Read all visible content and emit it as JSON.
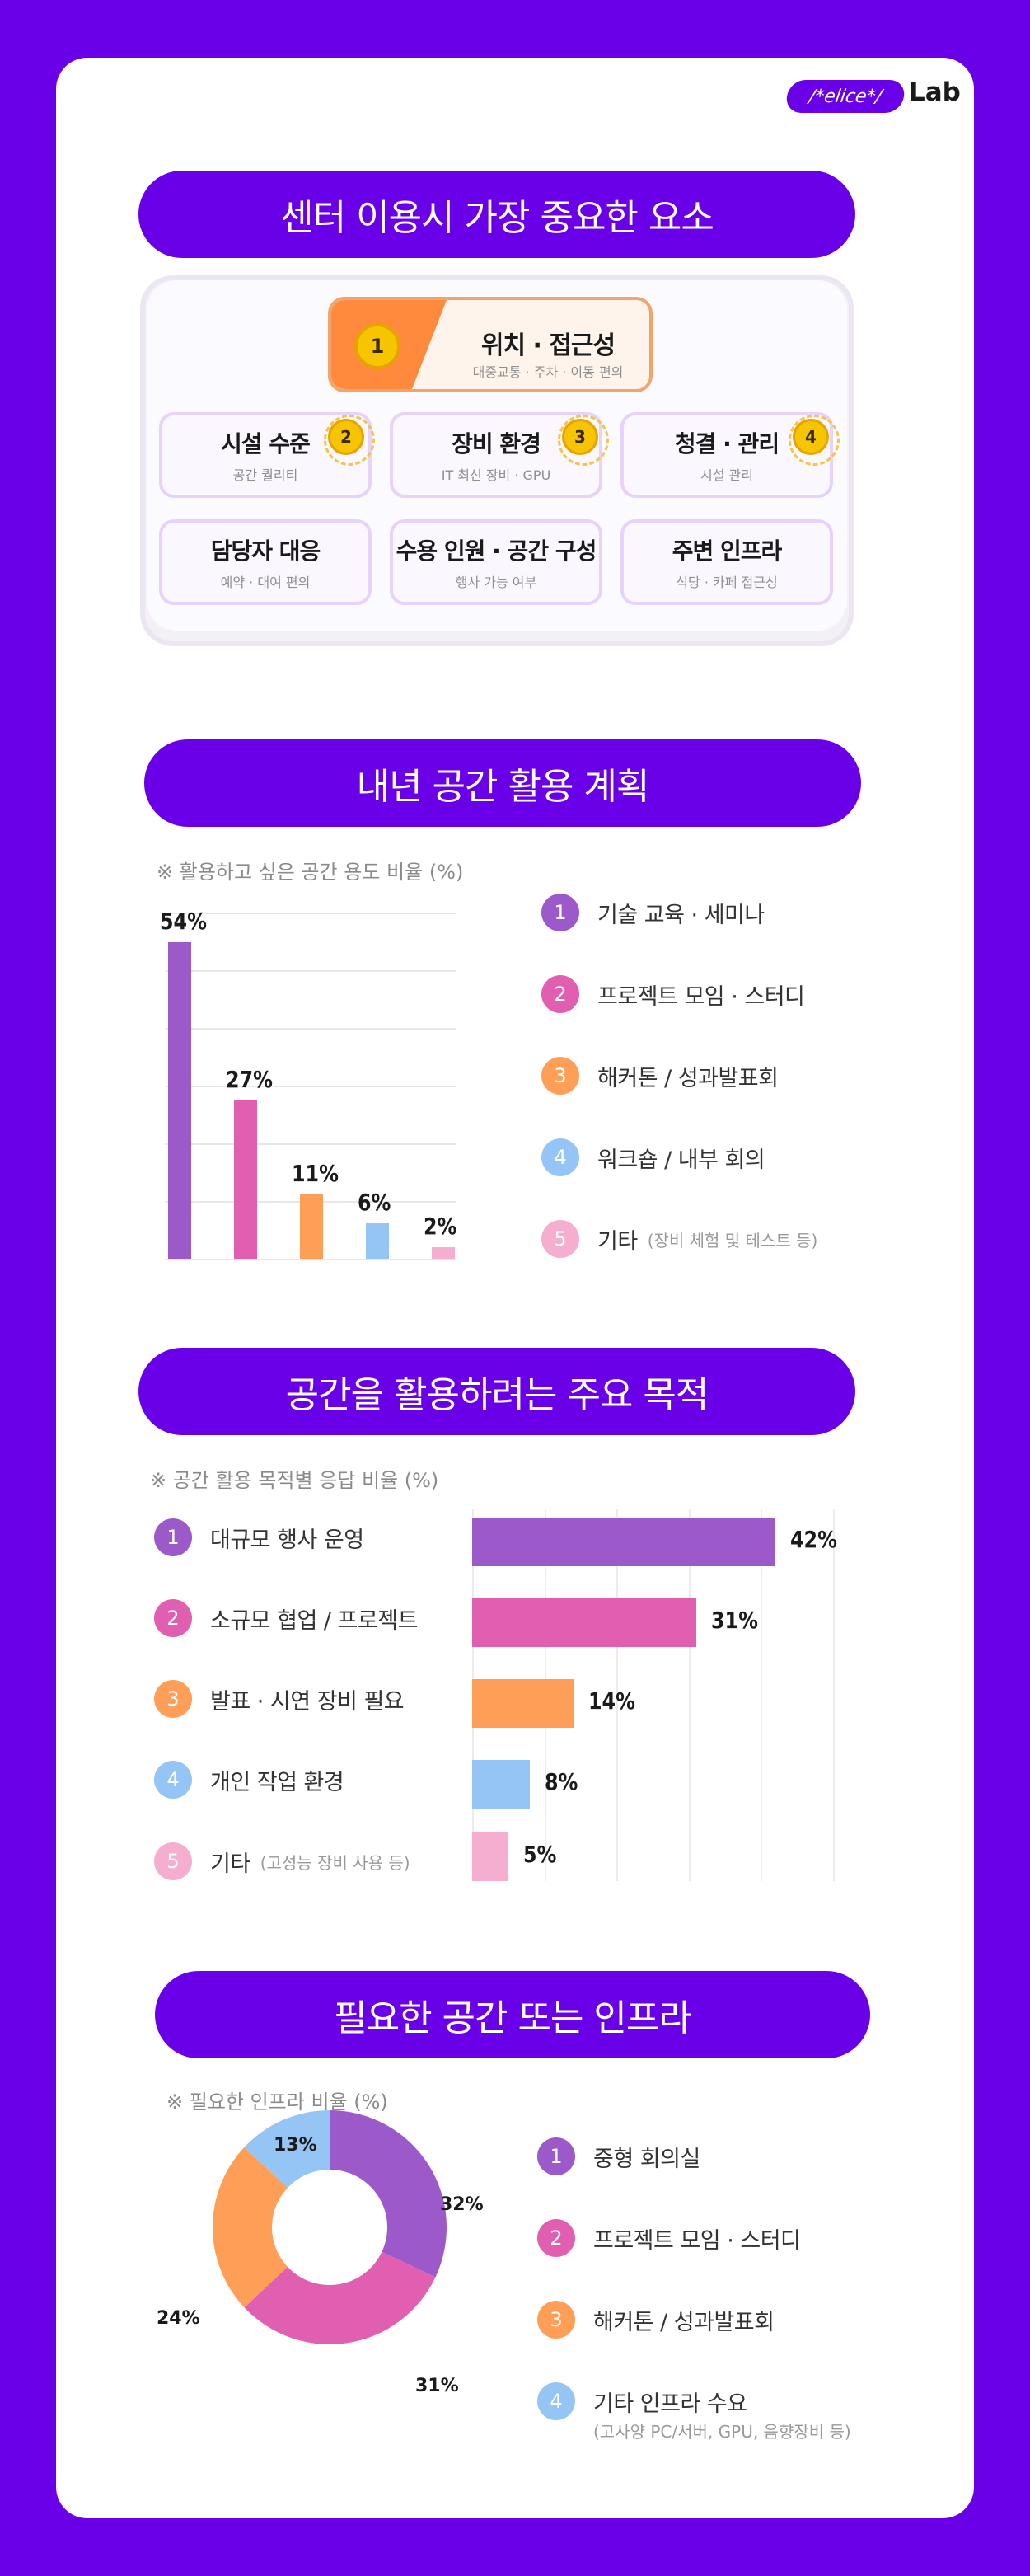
{
  "brand": {
    "logo": "/*elice*/",
    "lab": "Lab"
  },
  "colors": {
    "purple": "#9b59c9",
    "pink": "#e15fb1",
    "orange": "#ff9f57",
    "blue": "#95c5f5",
    "lightpink": "#f5aed0"
  },
  "section1": {
    "title": "센터 이용시 가장 중요한 요소",
    "first": {
      "rank": "1",
      "title": "위치 · 접근성",
      "sub": "대중교통 · 주차 · 이동 편의"
    },
    "items": [
      {
        "title": "시설 수준",
        "sub": "공간 퀄리티",
        "rank": "2"
      },
      {
        "title": "장비 환경",
        "sub": "IT 최신 장비 · GPU",
        "rank": "3"
      },
      {
        "title": "청결 · 관리",
        "sub": "시설 관리",
        "rank": "4"
      },
      {
        "title": "담당자 대응",
        "sub": "예약 · 대여 편의"
      },
      {
        "title": "수용 인원 · 공간 구성",
        "sub": "행사 가능 여부"
      },
      {
        "title": "주변 인프라",
        "sub": "식당 · 카페 접근성"
      }
    ]
  },
  "section2": {
    "title": "내년 공간 활용 계획",
    "note": "※ 활용하고 싶은 공간 용도 비율 (%)",
    "legend": [
      {
        "num": "1",
        "label": "기술 교육 · 세미나",
        "extra": ""
      },
      {
        "num": "2",
        "label": "프로젝트 모임 · 스터디",
        "extra": ""
      },
      {
        "num": "3",
        "label": "해커톤 / 성과발표회",
        "extra": ""
      },
      {
        "num": "4",
        "label": "워크숍 / 내부 회의",
        "extra": ""
      },
      {
        "num": "5",
        "label": "기타",
        "extra": "(장비 체험 및 테스트 등)"
      }
    ]
  },
  "section3": {
    "title": "공간을 활용하려는 주요 목적",
    "note": "※ 공간 활용 목적별 응답 비율 (%)",
    "legend": [
      {
        "num": "1",
        "label": "대규모 행사 운영",
        "extra": ""
      },
      {
        "num": "2",
        "label": "소규모 협업 / 프로젝트",
        "extra": ""
      },
      {
        "num": "3",
        "label": "발표 · 시연 장비 필요",
        "extra": ""
      },
      {
        "num": "4",
        "label": "개인 작업 환경",
        "extra": ""
      },
      {
        "num": "5",
        "label": "기타",
        "extra": "(고성능 장비 사용 등)"
      }
    ]
  },
  "section4": {
    "title": "필요한 공간 또는 인프라",
    "note": "※ 필요한 인프라 비율 (%)",
    "legend": [
      {
        "num": "1",
        "label": "중형 회의실",
        "sub": ""
      },
      {
        "num": "2",
        "label": "프로젝트 모임 · 스터디",
        "sub": ""
      },
      {
        "num": "3",
        "label": "해커톤 / 성과발표회",
        "sub": ""
      },
      {
        "num": "4",
        "label": "기타 인프라 수요",
        "sub": "(고사양 PC/서버, GPU, 음향장비 등)"
      }
    ]
  },
  "chart_data": [
    {
      "type": "bar",
      "title": "내년 공간 활용 계획",
      "categories": [
        "기술 교육 · 세미나",
        "프로젝트 모임 · 스터디",
        "해커톤 / 성과발표회",
        "워크숍 / 내부 회의",
        "기타"
      ],
      "values": [
        54,
        27,
        11,
        6,
        2
      ],
      "labels": [
        "54%",
        "27%",
        "11%",
        "6%",
        "2%"
      ],
      "ylim": [
        0,
        60
      ],
      "orientation": "vertical"
    },
    {
      "type": "bar",
      "title": "공간을 활용하려는 주요 목적",
      "categories": [
        "대규모 행사 운영",
        "소규모 협업 / 프로젝트",
        "발표 · 시연 장비 필요",
        "개인 작업 환경",
        "기타"
      ],
      "values": [
        42,
        31,
        14,
        8,
        5
      ],
      "labels": [
        "42%",
        "31%",
        "14%",
        "8%",
        "5%"
      ],
      "xlim": [
        0,
        50
      ],
      "orientation": "horizontal"
    },
    {
      "type": "pie",
      "title": "필요한 공간 또는 인프라",
      "categories": [
        "중형 회의실",
        "프로젝트 모임 · 스터디",
        "해커톤 / 성과발표회",
        "기타 인프라 수요"
      ],
      "values": [
        32,
        31,
        24,
        13
      ],
      "labels": [
        "32%",
        "31%",
        "24%",
        "13%"
      ],
      "donut": true
    }
  ]
}
